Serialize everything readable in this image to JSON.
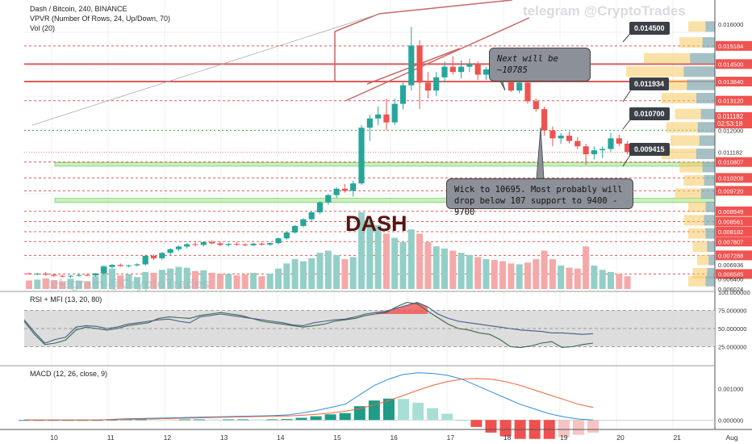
{
  "header": {
    "title": "Dash / Bitcoin, 240, BINANCE",
    "vpvr": "VPVR (Number Of Rows, 24, Up/Down, 70)",
    "vol": "Vol (20)",
    "rsi_label": "RSI + MFI (13, 20, 80)",
    "macd_label": "MACD (12, 26, close, 9)"
  },
  "watermark": "telegram @CryptoTrades",
  "watermark_lower": "telegram @CryptoTrades",
  "big_label": "DASH",
  "callouts": {
    "next": "Next will be ~10785",
    "wick_line1": "Wick to 10695. Most probably will",
    "wick_line2": "drop below 107 support to 9400 - 9700"
  },
  "tags": {
    "t1": "0.014500",
    "t2": "0.011934",
    "t3": "0.010700",
    "t4": "0.009415"
  },
  "current_price": "0.011182",
  "countdown": "02:53:18",
  "colors": {
    "up": "#26a69a",
    "down": "#ef5350",
    "up_vol": "#93cfc7",
    "down_vol": "#f4a9a8",
    "grid": "#eef0f3",
    "line_red": "#e05a5a",
    "zone": "#b7eba7"
  },
  "chart_data": {
    "type": "candlestick",
    "title": "Dash / Bitcoin, 240, BINANCE",
    "x_tick_labels": [
      "10",
      "11",
      "12",
      "13",
      "14",
      "15",
      "16",
      "17",
      "18",
      "19",
      "20",
      "21",
      "Aug"
    ],
    "y_tick_labels": [
      "0.016000",
      "0.015184",
      "0.014500",
      "0.013840",
      "0.013120",
      "0.012000",
      "0.011182",
      "0.010807",
      "0.010208",
      "0.009720",
      "0.008949",
      "0.008561",
      "0.008182",
      "0.007807",
      "0.007288",
      "0.006936",
      "0.006585",
      "0.006400",
      "0.006024"
    ],
    "red_levels": [
      0.015184,
      0.0145,
      0.01384,
      0.01312,
      0.010807,
      0.010208,
      0.00972,
      0.008949,
      0.008561,
      0.008182,
      0.007807,
      0.007288,
      0.006585
    ],
    "support_zones": [
      [
        0.01065,
        0.01079
      ],
      [
        0.00928,
        0.00944
      ]
    ],
    "ylim": [
      0.00602,
      0.01655
    ],
    "candles": [
      [
        0.00661,
        0.00664,
        0.00656,
        0.00658
      ],
      [
        0.00658,
        0.00663,
        0.00654,
        0.0066
      ],
      [
        0.0066,
        0.00666,
        0.00652,
        0.00656
      ],
      [
        0.00656,
        0.0066,
        0.00648,
        0.00652
      ],
      [
        0.00652,
        0.00656,
        0.00645,
        0.00649
      ],
      [
        0.00649,
        0.00655,
        0.00644,
        0.00652
      ],
      [
        0.00652,
        0.00658,
        0.00648,
        0.00655
      ],
      [
        0.00655,
        0.0066,
        0.0065,
        0.00653
      ],
      [
        0.00653,
        0.00662,
        0.00649,
        0.00661
      ],
      [
        0.00661,
        0.00688,
        0.00655,
        0.00685
      ],
      [
        0.00685,
        0.00696,
        0.0068,
        0.00693
      ],
      [
        0.00693,
        0.00698,
        0.00686,
        0.00689
      ],
      [
        0.00689,
        0.00694,
        0.00684,
        0.00691
      ],
      [
        0.00691,
        0.00699,
        0.00687,
        0.00695
      ],
      [
        0.00695,
        0.0073,
        0.0069,
        0.00727
      ],
      [
        0.00727,
        0.00733,
        0.00712,
        0.00718
      ],
      [
        0.00718,
        0.00742,
        0.00712,
        0.00738
      ],
      [
        0.00738,
        0.00756,
        0.0073,
        0.00752
      ],
      [
        0.00752,
        0.00766,
        0.00745,
        0.00762
      ],
      [
        0.00762,
        0.00776,
        0.00755,
        0.00771
      ],
      [
        0.00771,
        0.0078,
        0.00762,
        0.00768
      ],
      [
        0.00768,
        0.00782,
        0.00762,
        0.00779
      ],
      [
        0.00779,
        0.00786,
        0.0077,
        0.00774
      ],
      [
        0.00774,
        0.0078,
        0.00764,
        0.00768
      ],
      [
        0.00768,
        0.00776,
        0.00761,
        0.00772
      ],
      [
        0.00772,
        0.00778,
        0.00765,
        0.0077
      ],
      [
        0.0077,
        0.00775,
        0.00762,
        0.00767
      ],
      [
        0.00767,
        0.00776,
        0.00763,
        0.00773
      ],
      [
        0.00773,
        0.00777,
        0.00766,
        0.00769
      ],
      [
        0.00769,
        0.00778,
        0.00765,
        0.00775
      ],
      [
        0.00775,
        0.00796,
        0.0077,
        0.00793
      ],
      [
        0.00793,
        0.00818,
        0.00788,
        0.00815
      ],
      [
        0.00815,
        0.00843,
        0.0081,
        0.0084
      ],
      [
        0.0084,
        0.00868,
        0.00835,
        0.00865
      ],
      [
        0.00865,
        0.00895,
        0.00858,
        0.00891
      ],
      [
        0.00891,
        0.00933,
        0.00884,
        0.00929
      ],
      [
        0.00929,
        0.0096,
        0.0092,
        0.00956
      ],
      [
        0.00956,
        0.00985,
        0.00945,
        0.0098
      ],
      [
        0.0098,
        0.00998,
        0.00965,
        0.00972
      ],
      [
        0.00972,
        0.0101,
        0.0095,
        0.01
      ],
      [
        0.01,
        0.0122,
        0.00995,
        0.0121
      ],
      [
        0.0121,
        0.0126,
        0.0116,
        0.01245
      ],
      [
        0.01245,
        0.0129,
        0.0122,
        0.0126
      ],
      [
        0.0126,
        0.0132,
        0.012,
        0.0123
      ],
      [
        0.0123,
        0.0132,
        0.0122,
        0.013
      ],
      [
        0.013,
        0.0138,
        0.0128,
        0.0137
      ],
      [
        0.0137,
        0.0159,
        0.0135,
        0.0152
      ],
      [
        0.0152,
        0.0154,
        0.0128,
        0.0138
      ],
      [
        0.0138,
        0.0142,
        0.0132,
        0.0135
      ],
      [
        0.0135,
        0.0142,
        0.0133,
        0.014
      ],
      [
        0.014,
        0.0146,
        0.0138,
        0.0144
      ],
      [
        0.0144,
        0.0148,
        0.0141,
        0.0142
      ],
      [
        0.0142,
        0.01465,
        0.01395,
        0.0144
      ],
      [
        0.0144,
        0.0147,
        0.0142,
        0.0145
      ],
      [
        0.0145,
        0.0146,
        0.0139,
        0.0141
      ],
      [
        0.0141,
        0.0144,
        0.0139,
        0.0143
      ],
      [
        0.0143,
        0.01445,
        0.0139,
        0.014
      ],
      [
        0.014,
        0.0142,
        0.0138,
        0.01395
      ],
      [
        0.01395,
        0.014,
        0.01345,
        0.0135
      ],
      [
        0.0135,
        0.0139,
        0.0134,
        0.0138
      ],
      [
        0.0138,
        0.0139,
        0.013,
        0.0131
      ],
      [
        0.0131,
        0.0132,
        0.0127,
        0.0128
      ],
      [
        0.0128,
        0.0129,
        0.0118,
        0.012
      ],
      [
        0.012,
        0.01215,
        0.0114,
        0.0117
      ],
      [
        0.0117,
        0.0119,
        0.0115,
        0.0118
      ],
      [
        0.0118,
        0.01195,
        0.0115,
        0.0116
      ],
      [
        0.0116,
        0.01175,
        0.0113,
        0.0114
      ],
      [
        0.0114,
        0.0115,
        0.0107,
        0.0111
      ],
      [
        0.0111,
        0.0114,
        0.0109,
        0.01125
      ],
      [
        0.01125,
        0.0114,
        0.01095,
        0.0113
      ],
      [
        0.0113,
        0.0119,
        0.0112,
        0.0117
      ],
      [
        0.0117,
        0.01185,
        0.0114,
        0.0115
      ],
      [
        0.0115,
        0.0116,
        0.0111,
        0.01118
      ]
    ],
    "volume": [
      20,
      22,
      25,
      21,
      18,
      24,
      20,
      18,
      30,
      55,
      48,
      32,
      35,
      28,
      40,
      38,
      45,
      48,
      52,
      50,
      42,
      44,
      38,
      36,
      35,
      32,
      34,
      38,
      30,
      36,
      48,
      60,
      70,
      65,
      72,
      85,
      90,
      80,
      70,
      75,
      180,
      160,
      150,
      130,
      120,
      110,
      140,
      130,
      110,
      100,
      95,
      90,
      85,
      80,
      75,
      70,
      68,
      65,
      60,
      58,
      62,
      70,
      90,
      70,
      55,
      50,
      48,
      100,
      55,
      45,
      40,
      35,
      30
    ],
    "rsi": [
      62,
      45,
      30,
      35,
      38,
      52,
      54,
      53,
      50,
      52,
      56,
      58,
      60,
      62,
      63,
      60,
      58,
      66,
      68,
      70,
      68,
      66,
      64,
      62,
      60,
      58,
      55,
      54,
      58,
      60,
      62,
      63,
      66,
      70,
      72,
      74,
      78,
      82,
      86,
      80,
      70,
      64,
      60,
      58,
      56,
      54,
      52,
      50,
      48,
      47,
      46,
      44,
      44,
      43,
      42,
      43
    ],
    "mfi": [
      60,
      42,
      28,
      30,
      34,
      48,
      52,
      50,
      48,
      50,
      54,
      56,
      58,
      64,
      66,
      65,
      64,
      68,
      70,
      72,
      70,
      68,
      64,
      60,
      58,
      56,
      54,
      52,
      54,
      56,
      60,
      62,
      64,
      68,
      70,
      72,
      80,
      86,
      84,
      74,
      65,
      56,
      50,
      48,
      44,
      42,
      35,
      25,
      24,
      26,
      30,
      32,
      24,
      25,
      28,
      30
    ],
    "rsi_ylim": [
      0,
      100
    ],
    "rsi_ticks": [
      "100.000000",
      "75.000000",
      "50.000000",
      "25.000000"
    ],
    "macd_ticks": [
      "0.001000",
      "0.000000"
    ],
    "macd": [
      0,
      0,
      0,
      0,
      0,
      0,
      2e-05,
      4e-05,
      5e-05,
      6e-05,
      7e-05,
      8e-05,
      9e-05,
      0.0001,
      0.00011,
      0.00012,
      0.00013,
      0.00014,
      0.00016,
      0.00022,
      0.0003,
      0.0004,
      0.0005,
      0.0008,
      0.0011,
      0.0013,
      0.00145,
      0.0015,
      0.00148,
      0.00142,
      0.0013,
      0.0011,
      0.0009,
      0.0007,
      0.0005,
      0.00035,
      0.0002,
      0.0001,
      3e-05,
      0
    ],
    "signal": [
      0,
      0,
      0,
      0,
      0,
      0,
      1e-05,
      2e-05,
      3e-05,
      4e-05,
      5e-05,
      6e-05,
      7e-05,
      8e-05,
      9e-05,
      0.0001,
      0.00011,
      0.00012,
      0.00013,
      0.00015,
      0.00018,
      0.00022,
      0.00028,
      0.00036,
      0.00048,
      0.00062,
      0.00078,
      0.00095,
      0.0011,
      0.00122,
      0.0013,
      0.00132,
      0.0013,
      0.00122,
      0.0011,
      0.00095,
      0.0008,
      0.00065,
      0.0005,
      0.0004
    ],
    "macd_ylim": [
      -0.0003,
      0.0017
    ]
  }
}
